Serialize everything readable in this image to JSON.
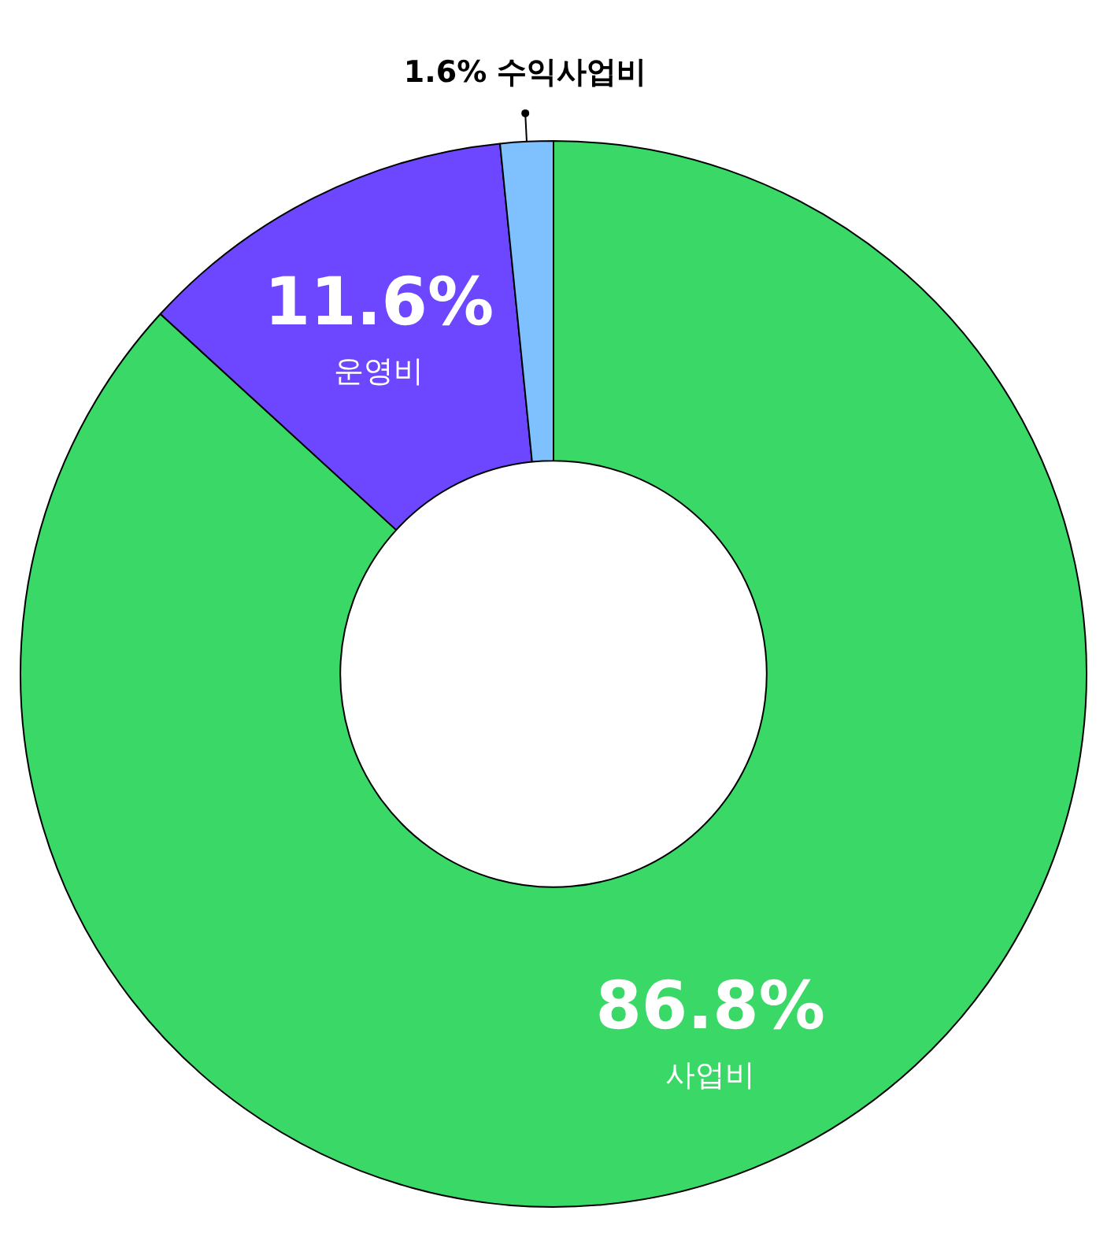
{
  "chart_data": {
    "type": "donut",
    "categories": [
      "사업비",
      "운영비",
      "수익사업비"
    ],
    "values": [
      86.8,
      11.6,
      1.6
    ],
    "colors": [
      "#3ad866",
      "#6c47ff",
      "#7fc1ff"
    ],
    "value_labels": [
      "86.8%",
      "11.6%",
      "1.6%"
    ],
    "legend": false
  }
}
